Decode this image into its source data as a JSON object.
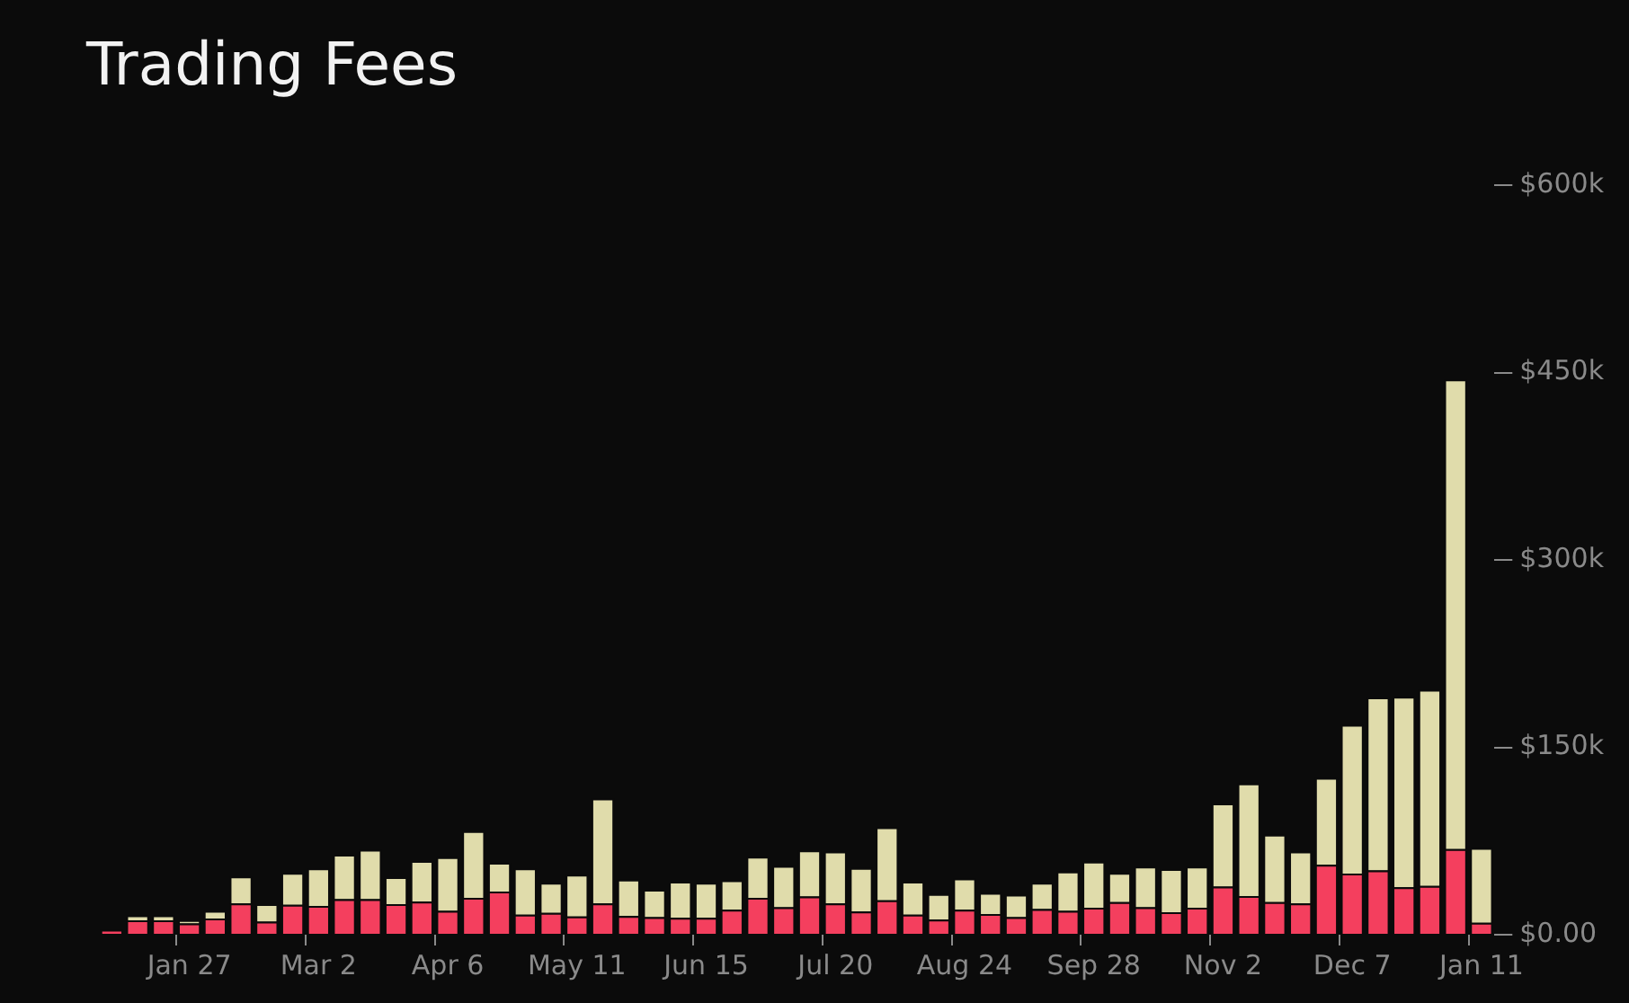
{
  "chart_data": {
    "type": "bar",
    "title": "Trading Fees",
    "categories": [
      null,
      null,
      null,
      "Jan 27",
      null,
      null,
      null,
      null,
      "Mar 2",
      null,
      null,
      null,
      null,
      "Apr 6",
      null,
      null,
      null,
      null,
      "May 11",
      null,
      null,
      null,
      null,
      "Jun 15",
      null,
      null,
      null,
      null,
      "Jul 20",
      null,
      null,
      null,
      null,
      "Aug 24",
      null,
      null,
      null,
      null,
      "Sep 28",
      null,
      null,
      null,
      null,
      "Nov 2",
      null,
      null,
      null,
      null,
      "Dec 7",
      null,
      null,
      null,
      null,
      "Jan 11"
    ],
    "stacked": true,
    "series": [
      {
        "color": "#f43f5e",
        "values": [
          4000,
          11500,
          11500,
          9000,
          13000,
          25000,
          10500,
          24000,
          23000,
          28500,
          28500,
          24500,
          26500,
          19000,
          29500,
          34500,
          16000,
          17500,
          14500,
          25000,
          15000,
          14000,
          13500,
          13500,
          20000,
          29500,
          22000,
          30500,
          25000,
          18500,
          27500,
          16000,
          12000,
          20000,
          16500,
          14000,
          20500,
          19000,
          21500,
          26000,
          22000,
          18000,
          21500,
          38500,
          31000,
          26000,
          25000,
          56000,
          49000,
          51500,
          38000,
          39000,
          68500,
          9500
        ]
      },
      {
        "color": "#e0dcab",
        "values": [
          0,
          4000,
          4000,
          2500,
          6000,
          21500,
          14000,
          25500,
          30000,
          35500,
          39500,
          21500,
          32500,
          43000,
          53500,
          23000,
          37000,
          24000,
          33500,
          84000,
          29000,
          22000,
          29000,
          28000,
          23500,
          33000,
          33000,
          37000,
          41500,
          35000,
          58500,
          26500,
          20500,
          25000,
          17000,
          18000,
          21000,
          31500,
          37000,
          23500,
          32500,
          34500,
          33000,
          66500,
          90000,
          54000,
          41500,
          69500,
          119000,
          138500,
          152500,
          157000,
          376000,
          60000
        ]
      }
    ],
    "ylim": [
      0,
      600000
    ],
    "yticks": [
      {
        "value": 0,
        "label": "$0.00"
      },
      {
        "value": 150000,
        "label": "$150k"
      },
      {
        "value": 300000,
        "label": "$300k"
      },
      {
        "value": 450000,
        "label": "$450k"
      },
      {
        "value": 600000,
        "label": "$600k"
      }
    ]
  }
}
